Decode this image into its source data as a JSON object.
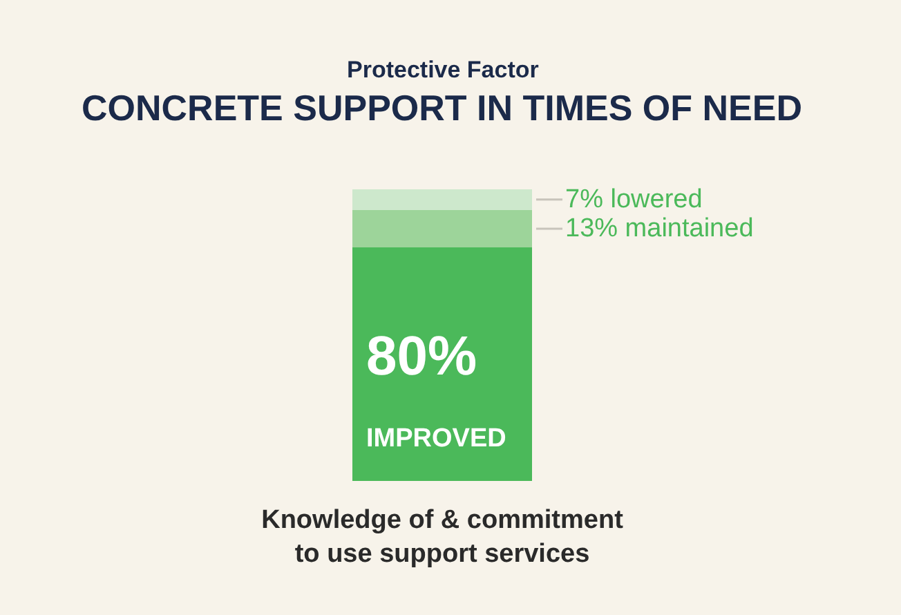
{
  "chart_data": {
    "type": "bar",
    "stacked": true,
    "title": "Protective Factor",
    "subtitle": "CONCRETE SUPPORT IN TIMES OF NEED",
    "categories": [
      "Knowledge of & commitment\nto use support services"
    ],
    "ylim": [
      0,
      100
    ],
    "tick_labels": "x",
    "series": [
      {
        "color": "#4bb95a",
        "values": [
          80
        ],
        "value_labels": [
          "80%\nIMPROVED"
        ]
      },
      {
        "color": "#9dd49a",
        "values": [
          13
        ],
        "value_labels": [
          "13% maintained"
        ]
      },
      {
        "color": "#cde8cc",
        "values": [
          7
        ],
        "value_labels": [
          "7% lowered"
        ]
      }
    ]
  }
}
